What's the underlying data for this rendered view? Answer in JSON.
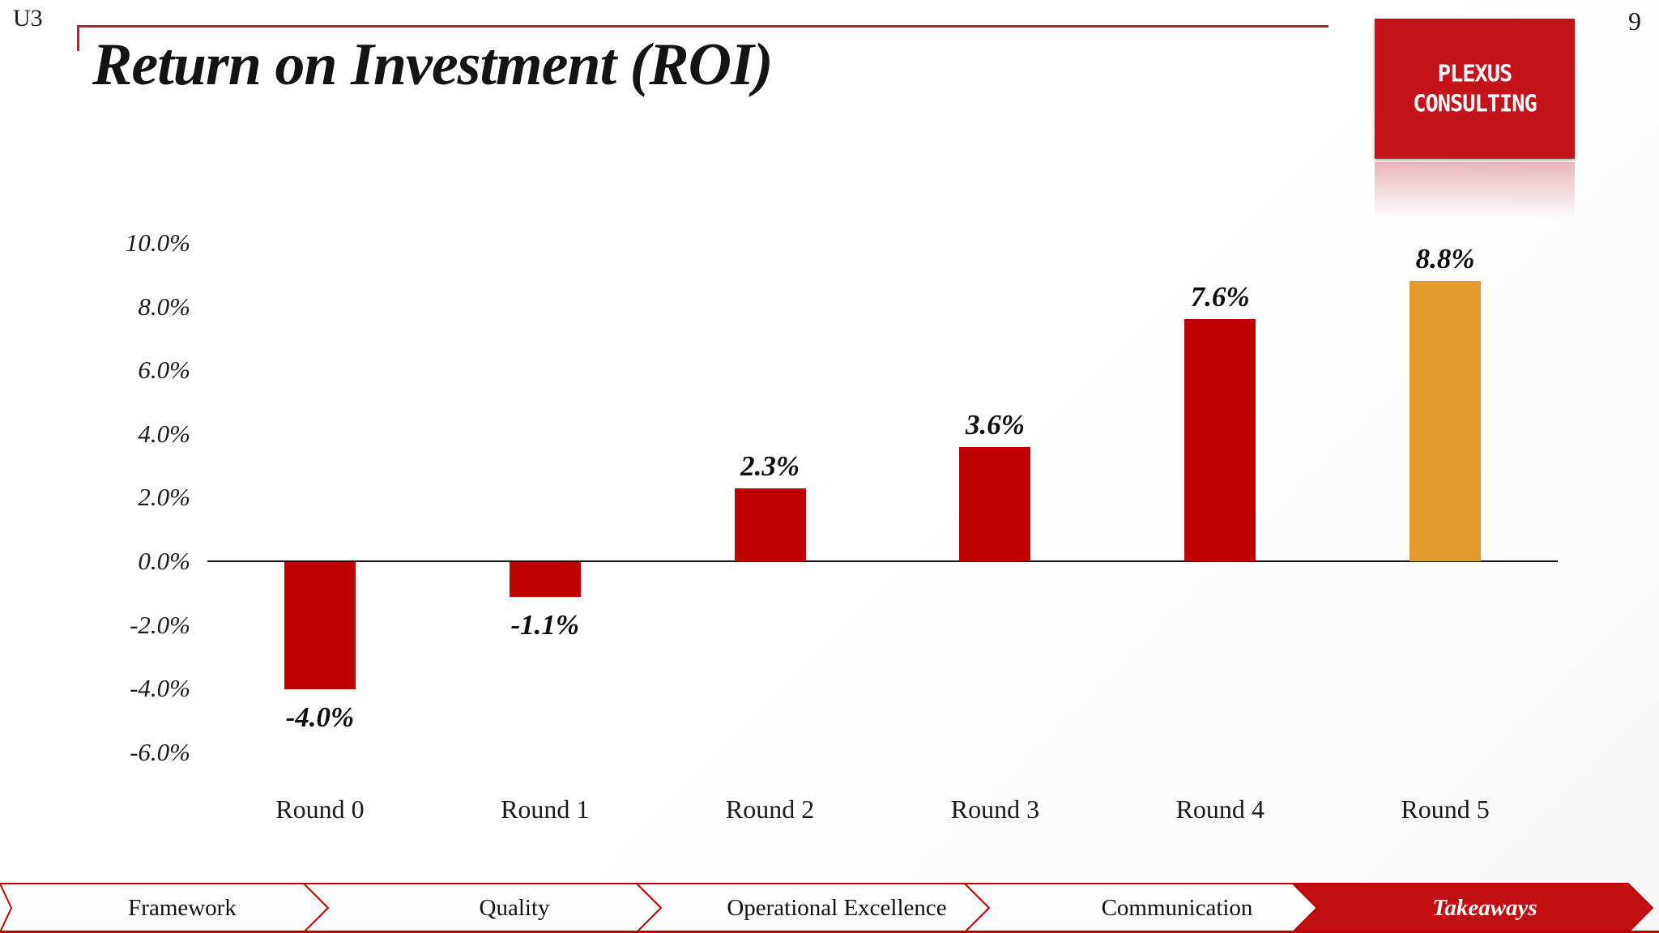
{
  "slide": {
    "unit_label": "U3",
    "page_number": "9",
    "title": "Return on Investment (ROI)"
  },
  "logo": {
    "line1": "PLEXUS",
    "line2": "CONSULTING",
    "bg_color": "#C5131A",
    "text_color": "#FFFFFF"
  },
  "chart_data": {
    "type": "bar",
    "title": "Return on Investment (ROI)",
    "categories": [
      "Round 0",
      "Round 1",
      "Round 2",
      "Round 3",
      "Round 4",
      "Round 5"
    ],
    "values": [
      -4.0,
      -1.1,
      2.3,
      3.6,
      7.6,
      8.8
    ],
    "data_labels": [
      "-4.0%",
      "-1.1%",
      "2.3%",
      "3.6%",
      "7.6%",
      "8.8%"
    ],
    "bar_colors": [
      "#C00000",
      "#C00000",
      "#C00000",
      "#C00000",
      "#C00000",
      "#E19A2B"
    ],
    "y_ticks": [
      10,
      8,
      6,
      4,
      2,
      0,
      -2,
      -4,
      -6
    ],
    "y_tick_labels": [
      "10.0%",
      "8.0%",
      "6.0%",
      "4.0%",
      "2.0%",
      "0.0%",
      "-2.0%",
      "-4.0%",
      "-6.0%"
    ],
    "ylim": [
      -6,
      10
    ],
    "xlabel": "",
    "ylabel": "",
    "grid": false,
    "legend": false
  },
  "nav": {
    "accent_color": "#C00000",
    "active_fill": "#C00E11",
    "items": [
      {
        "label": "Framework",
        "active": false
      },
      {
        "label": "Quality",
        "active": false
      },
      {
        "label": "Operational Excellence",
        "active": false
      },
      {
        "label": "Communication",
        "active": false
      },
      {
        "label": "Takeaways",
        "active": true
      }
    ]
  }
}
